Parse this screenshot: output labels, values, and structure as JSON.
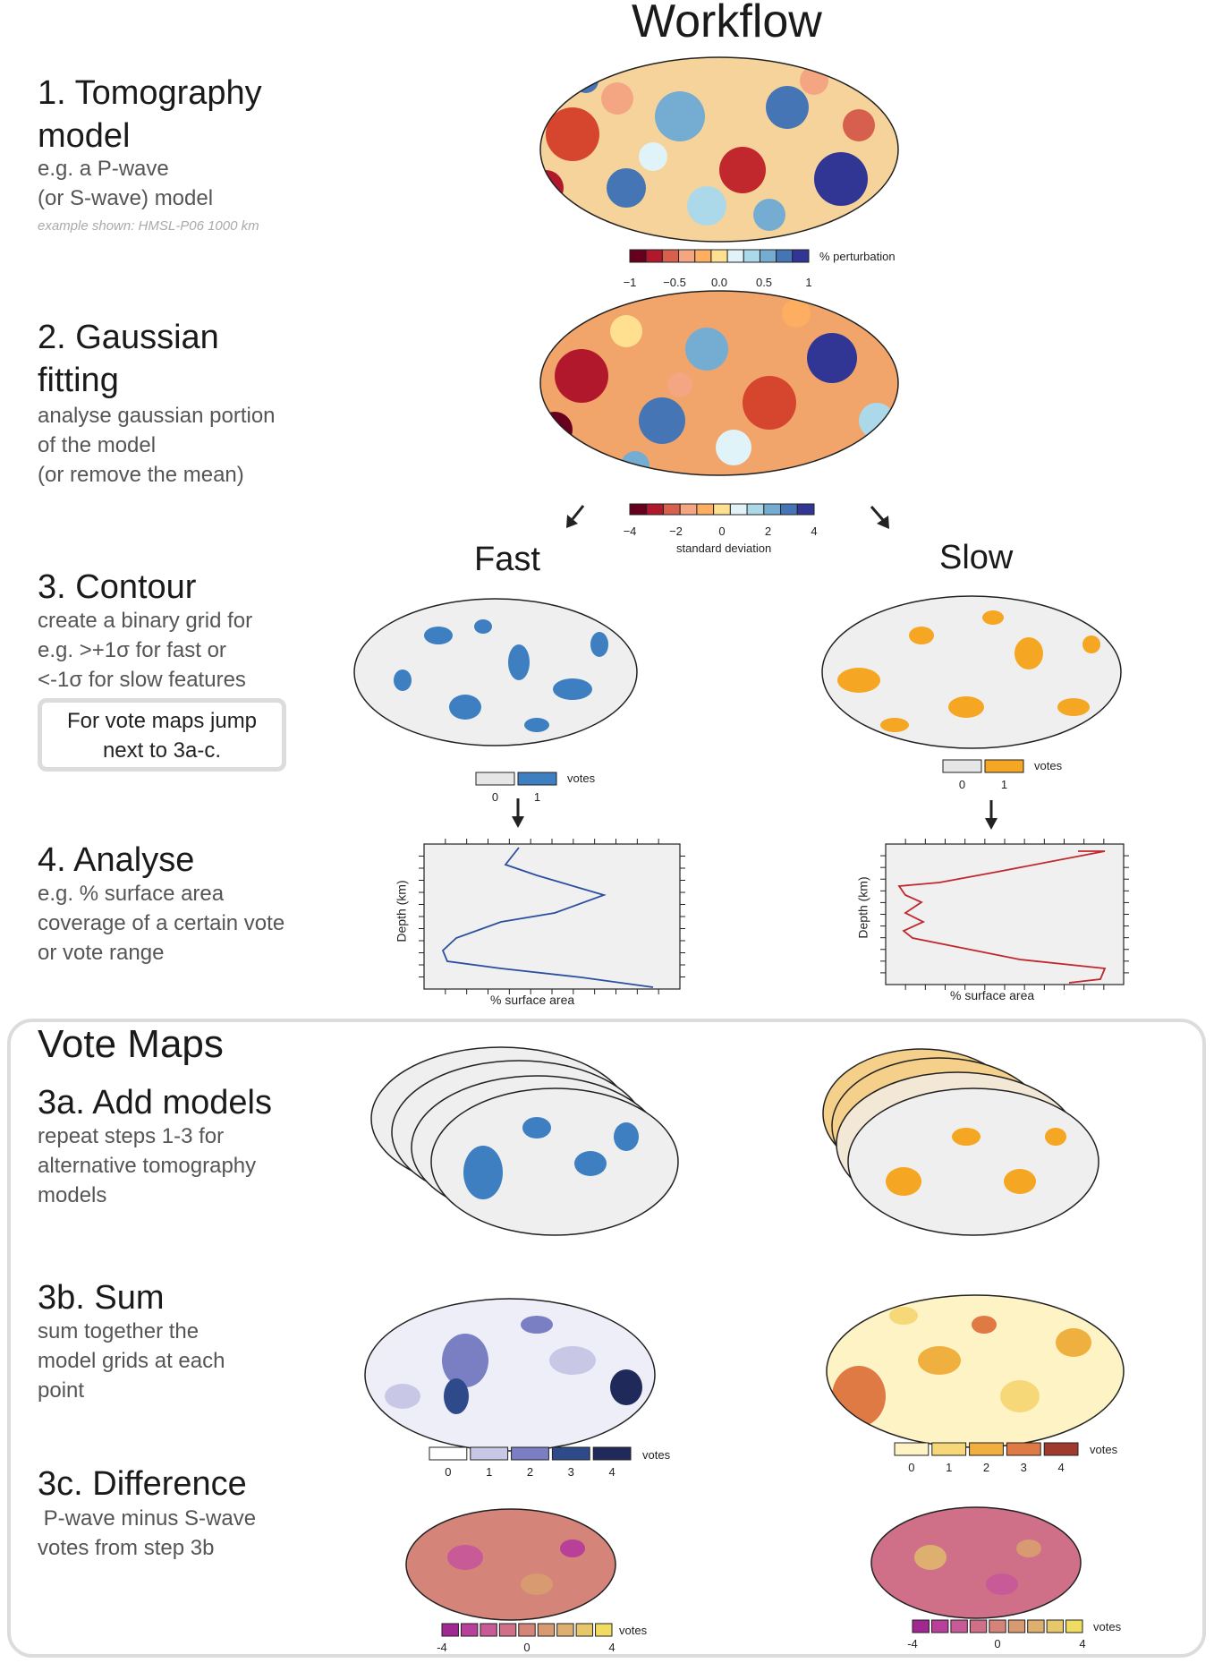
{
  "title": "Workflow",
  "columns": {
    "fast": "Fast",
    "slow": "Slow"
  },
  "steps": {
    "s1": {
      "heading_1": "1. Tomography",
      "heading_2": "model",
      "desc": [
        "e.g. a P-wave",
        "(or S-wave) model"
      ],
      "note": "example shown: HMSL-P06 1000 km"
    },
    "s2": {
      "heading_1": "2. Gaussian",
      "heading_2": "fitting",
      "desc": [
        "analyse gaussian portion",
        "of the model",
        "(or remove the mean)"
      ]
    },
    "s3": {
      "heading": "3. Contour",
      "desc": [
        "create a binary grid for",
        "e.g. >+1σ for fast or",
        "<-1σ for slow features"
      ],
      "box": [
        "For vote maps jump",
        "next to 3a-c."
      ]
    },
    "s4": {
      "heading": "4. Analyse",
      "desc": [
        "e.g. % surface area",
        "coverage of a certain vote",
        "or vote range"
      ]
    }
  },
  "vote_maps": {
    "title": "Vote Maps",
    "s3a": {
      "heading": "3a. Add models",
      "desc": [
        "repeat steps 1-3 for",
        "alternative tomography",
        "models"
      ]
    },
    "s3b": {
      "heading": "3b. Sum",
      "desc": [
        "sum together the",
        "model grids at each",
        "point"
      ]
    },
    "s3c": {
      "heading": "3c. Difference",
      "desc": [
        " P-wave minus S-wave",
        "votes from step 3b"
      ]
    }
  },
  "colorbars": {
    "perturbation": {
      "label": "% perturbation",
      "ticks": [
        "−1",
        "−0.5",
        "0.0",
        "0.5",
        "1"
      ],
      "colors": [
        "#67001f",
        "#b2182b",
        "#d6604d",
        "#f4a582",
        "#fdae61",
        "#fee090",
        "#e0f3f8",
        "#abd9e9",
        "#74add1",
        "#4575b4",
        "#313695"
      ]
    },
    "stddev": {
      "label": "standard deviation",
      "ticks": [
        "−4",
        "−2",
        "0",
        "2",
        "4"
      ],
      "colors": [
        "#67001f",
        "#b2182b",
        "#d6604d",
        "#f4a582",
        "#fdae61",
        "#fee090",
        "#e0f3f8",
        "#abd9e9",
        "#74add1",
        "#4575b4",
        "#313695"
      ]
    },
    "fast_binary": {
      "label": "votes",
      "ticks": [
        "0",
        "1"
      ],
      "colors": [
        "#e6e6e6",
        "#3d7fc0"
      ]
    },
    "slow_binary": {
      "label": "votes",
      "ticks": [
        "0",
        "1"
      ],
      "colors": [
        "#e6e6e6",
        "#f5a623"
      ]
    },
    "fast_sum": {
      "label": "votes",
      "ticks": [
        "0",
        "1",
        "2",
        "3",
        "4"
      ],
      "colors": [
        "#ffffff",
        "#c8c8e6",
        "#7a7fc4",
        "#2f4a8a",
        "#1f2a5a"
      ]
    },
    "slow_sum": {
      "label": "votes",
      "ticks": [
        "0",
        "1",
        "2",
        "3",
        "4"
      ],
      "colors": [
        "#fdf3c4",
        "#f7d879",
        "#f0b040",
        "#e07a45",
        "#a0392e"
      ]
    },
    "diff_p": {
      "label": "votes",
      "ticks": [
        "-4",
        "0",
        "4"
      ],
      "colors": [
        "#a02890",
        "#b8409a",
        "#c85a98",
        "#d07088",
        "#d48478",
        "#d89a70",
        "#deb070",
        "#e6c86a",
        "#f0dc60"
      ]
    },
    "diff_s": {
      "label": "votes",
      "ticks": [
        "-4",
        "0",
        "4"
      ],
      "colors": [
        "#a02890",
        "#b8409a",
        "#c85a98",
        "#d07088",
        "#d48478",
        "#d89a70",
        "#deb070",
        "#e6c86a",
        "#f0dc60"
      ]
    }
  },
  "profiles": {
    "fast": {
      "xlabel": "% surface area",
      "ylabel": "Depth (km)",
      "line_color": "#2b4fa0"
    },
    "slow": {
      "xlabel": "% surface area",
      "ylabel": "Depth (km)",
      "line_color": "#c0282d"
    }
  }
}
